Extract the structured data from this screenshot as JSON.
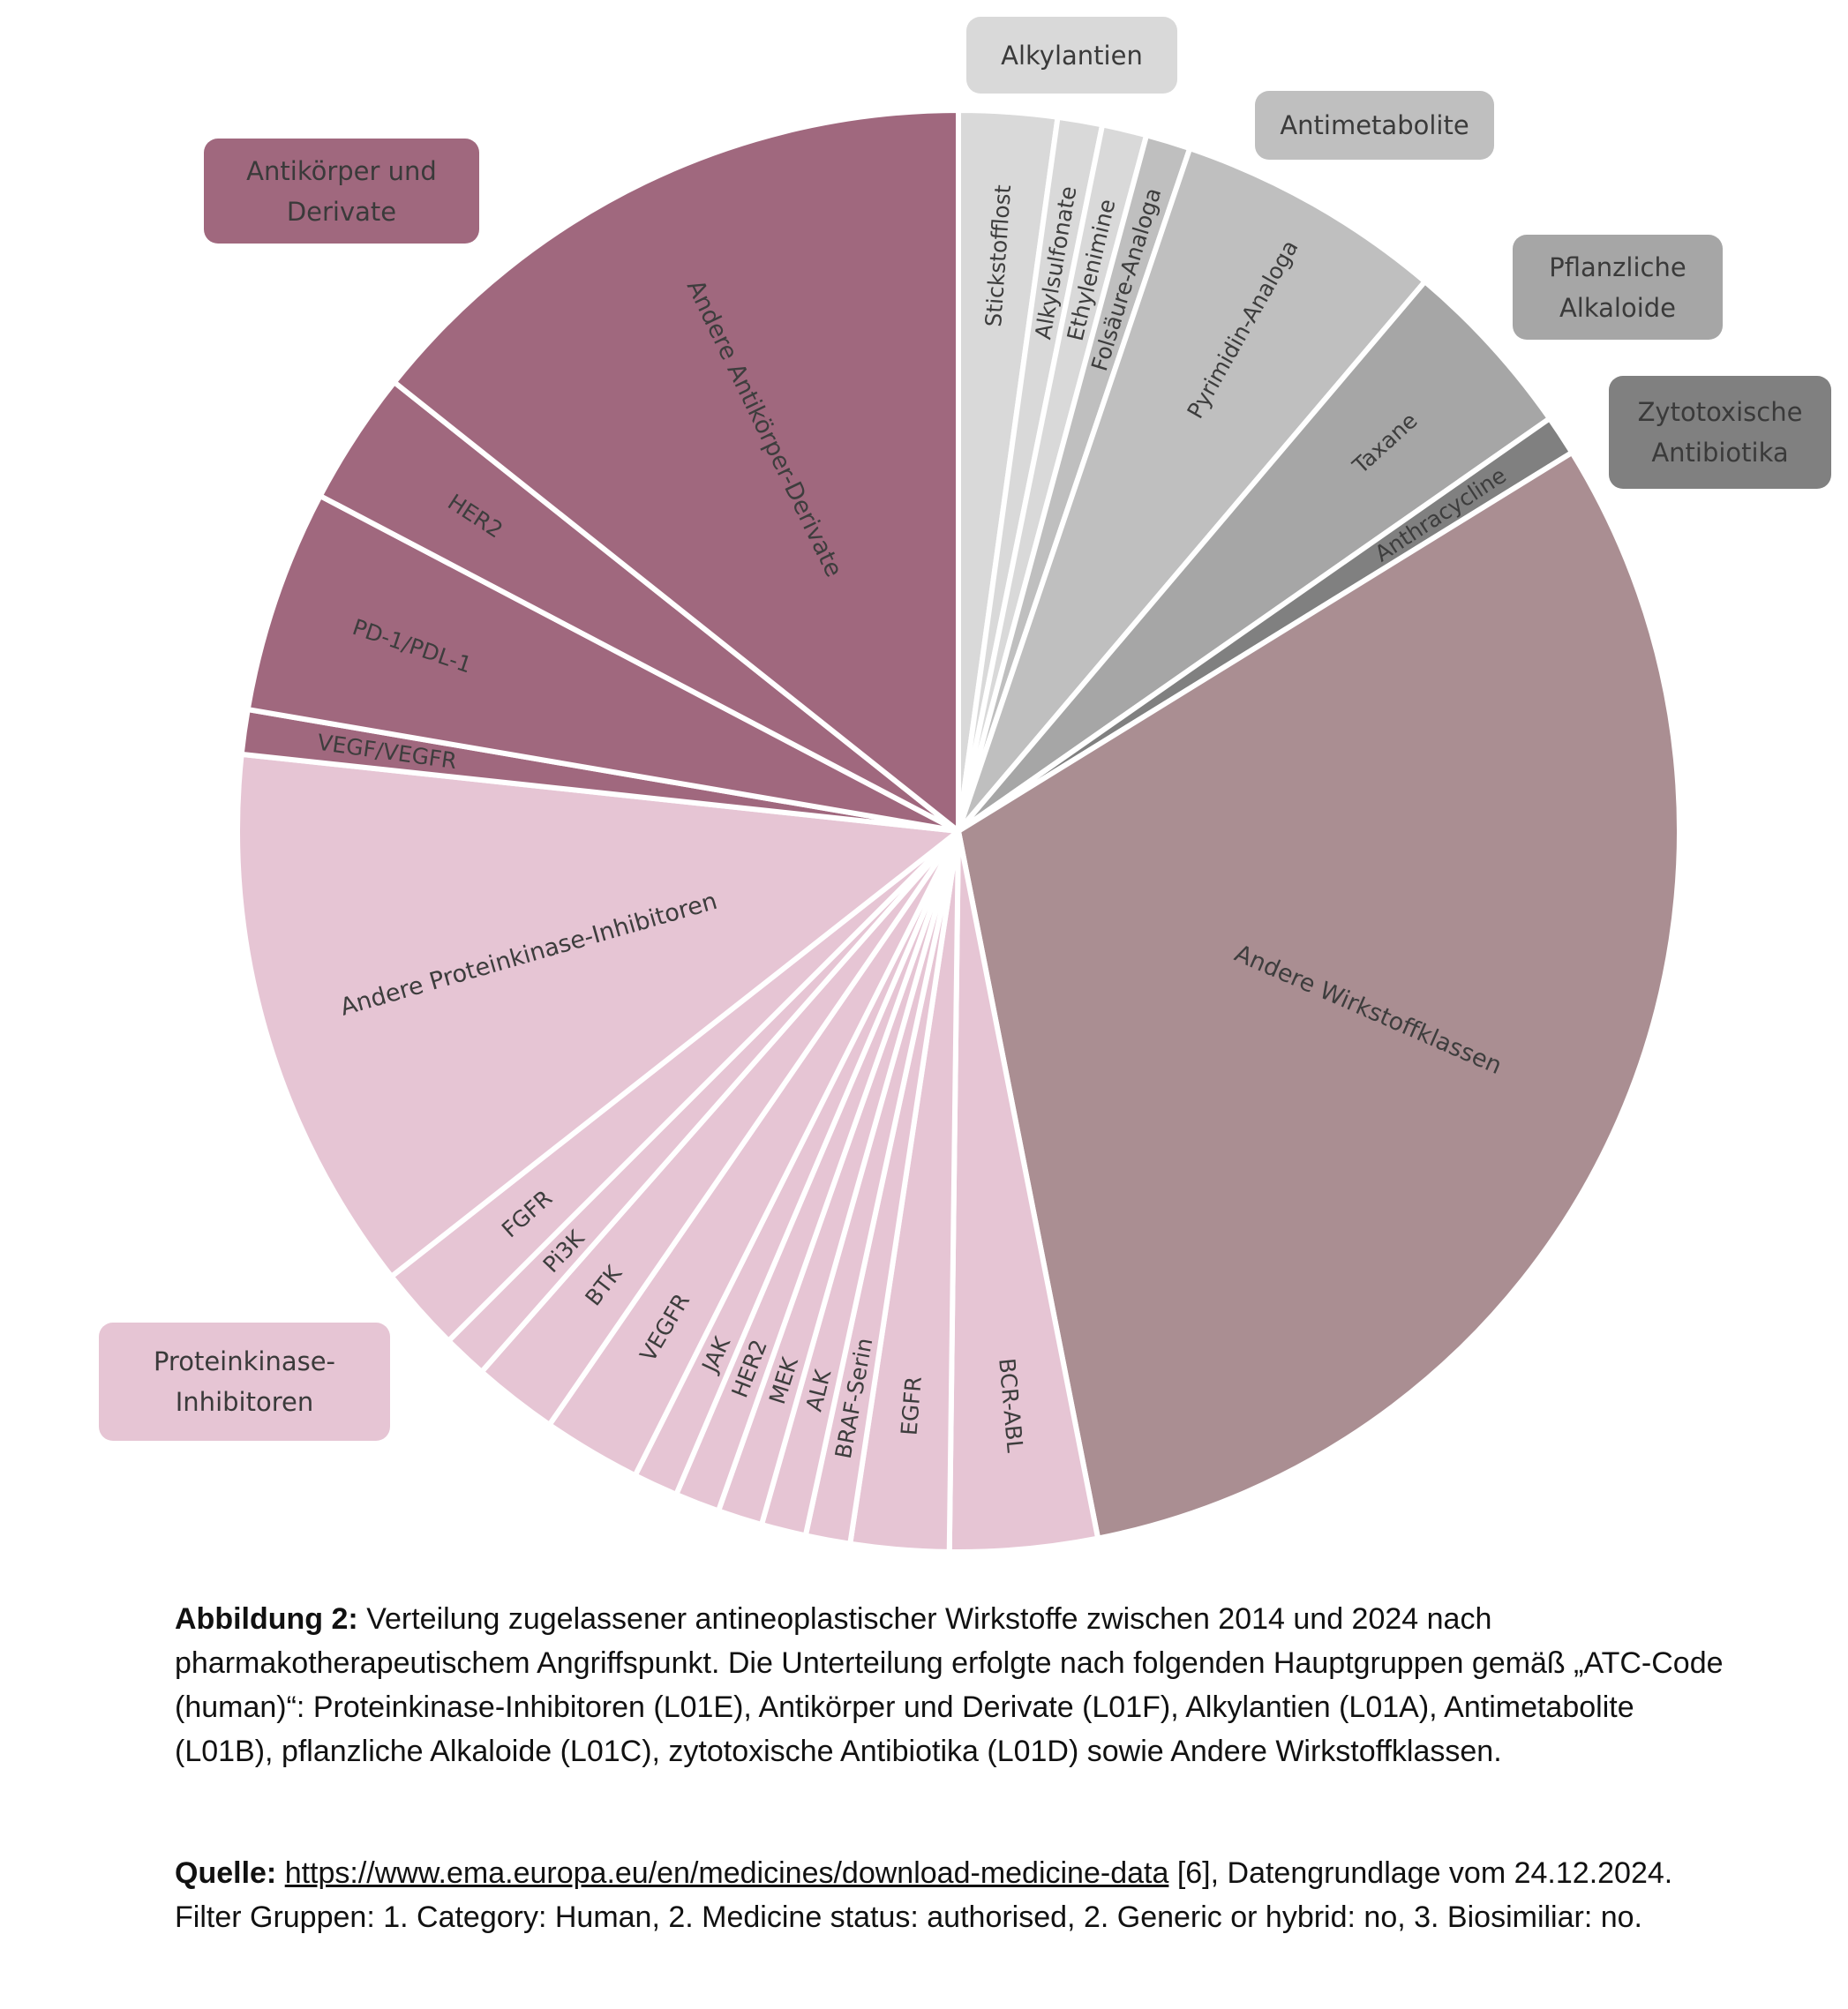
{
  "chart_data": {
    "type": "pie",
    "slices": [
      {
        "label": "Stickstofflost",
        "value": 2.2,
        "group": "Alkylantien",
        "color": "#d9d9d9"
      },
      {
        "label": "Alkylsulfonate",
        "value": 1.0,
        "group": "Alkylantien",
        "color": "#d9d9d9"
      },
      {
        "label": "Ethylenimine",
        "value": 1.0,
        "group": "Alkylantien",
        "color": "#d9d9d9"
      },
      {
        "label": "Folsäure-Analoga",
        "value": 1.0,
        "group": "Antimetabolite",
        "color": "#bfbfbf"
      },
      {
        "label": "Pyrimidin-Analoga",
        "value": 6.0,
        "group": "Antimetabolite",
        "color": "#bfbfbf"
      },
      {
        "label": "Taxane",
        "value": 4.1,
        "group": "Pflanzliche Alkaloide",
        "color": "#a6a6a6"
      },
      {
        "label": "Anthracycline",
        "value": 0.9,
        "group": "Zytotoxische Antibiotika",
        "color": "#808080"
      },
      {
        "label": "Andere Wirkstoffklassen",
        "value": 30.7,
        "group": "Andere Wirkstoffklassen",
        "color": "#aa8e92"
      },
      {
        "label": "BCR-ABL",
        "value": 3.3,
        "group": "Proteinkinase-Inhibitoren",
        "color": "#e6c5d4"
      },
      {
        "label": "EGFR",
        "value": 2.2,
        "group": "Proteinkinase-Inhibitoren",
        "color": "#e6c5d4"
      },
      {
        "label": "BRAF-Serin",
        "value": 1.0,
        "group": "Proteinkinase-Inhibitoren",
        "color": "#e6c5d4"
      },
      {
        "label": "ALK",
        "value": 1.0,
        "group": "Proteinkinase-Inhibitoren",
        "color": "#e6c5d4"
      },
      {
        "label": "MEK",
        "value": 1.0,
        "group": "Proteinkinase-Inhibitoren",
        "color": "#e6c5d4"
      },
      {
        "label": "HER2",
        "value": 1.0,
        "group": "Proteinkinase-Inhibitoren",
        "color": "#e6c5d4"
      },
      {
        "label": "JAK",
        "value": 1.0,
        "group": "Proteinkinase-Inhibitoren",
        "color": "#e6c5d4"
      },
      {
        "label": "VEGFR",
        "value": 2.2,
        "group": "Proteinkinase-Inhibitoren",
        "color": "#e6c5d4"
      },
      {
        "label": "BTK",
        "value": 1.9,
        "group": "Proteinkinase-Inhibitoren",
        "color": "#e6c5d4"
      },
      {
        "label": "Pi3K",
        "value": 1.0,
        "group": "Proteinkinase-Inhibitoren",
        "color": "#e6c5d4"
      },
      {
        "label": "FGFR",
        "value": 1.9,
        "group": "Proteinkinase-Inhibitoren",
        "color": "#e6c5d4"
      },
      {
        "label": "Andere Proteinkinase-Inhibitoren",
        "value": 12.3,
        "group": "Proteinkinase-Inhibitoren",
        "color": "#e6c5d4"
      },
      {
        "label": "VEGF/VEGFR",
        "value": 1.0,
        "group": "Antikörper und Derivate",
        "color": "#a0687e"
      },
      {
        "label": "PD-1/PDL-1",
        "value": 5.0,
        "group": "Antikörper und Derivate",
        "color": "#a0687e"
      },
      {
        "label": "HER2",
        "value": 3.0,
        "group": "Antikörper und Derivate",
        "color": "#a0687e"
      },
      {
        "label": "Andere Antikörper-Derivate",
        "value": 14.3,
        "group": "Antikörper und Derivate",
        "color": "#a0687e"
      }
    ],
    "groups": [
      {
        "label": "Alkylantien",
        "color": "#d9d9d9"
      },
      {
        "label": "Antimetabolite",
        "color": "#bfbfbf"
      },
      {
        "label": "Pflanzliche\nAlkaloide",
        "color": "#a6a6a6"
      },
      {
        "label": "Zytotoxische\nAntibiotika",
        "color": "#808080"
      },
      {
        "label": "Proteinkinase-\nInhibitoren",
        "color": "#e6c5d4"
      },
      {
        "label": "Antikörper und\nDerivate",
        "color": "#a0687e"
      }
    ]
  },
  "caption": {
    "fig_label": "Abbildung 2:",
    "text": " Verteilung zugelassener antineoplastischer Wirkstoffe zwischen 2014 und 2024 nach pharmakotherapeutischem Angriffspunkt. Die Unterteilung erfolgte nach folgenden Hauptgruppen gemäß „ATC-Code (human)“: Proteinkinase-Inhibitoren (L01E), Antikörper und Derivate (L01F), Alkylantien (L01A), Antimetabolite (L01B), pflanzliche Alkaloide (L01C), zytotoxische Antibiotika (L01D) sowie Andere Wirkstoffklassen."
  },
  "source": {
    "label": "Quelle:",
    "link_text": "https://www.ema.europa.eu/en/medicines/download-medicine-data",
    "text": " [6], Datengrundlage vom 24.12.2024. Filter Gruppen: 1. Category: Human, 2. Medicine status: authorised, 2. Generic or hybrid: no, 3. Biosimiliar: no."
  }
}
